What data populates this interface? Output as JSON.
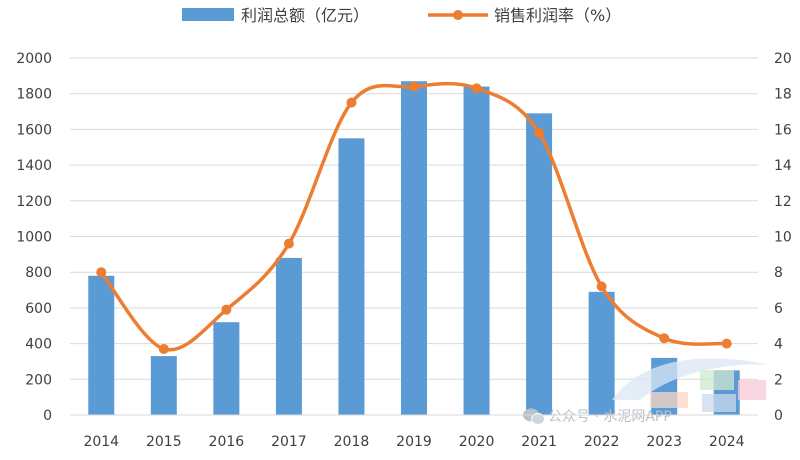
{
  "colors": {
    "bar": "#5b9bd5",
    "line": "#ed7d31",
    "grid": "#d9d9d9",
    "axis_text": "#404040",
    "watermark": "#b9c2cc"
  },
  "watermark": {
    "icon": "wechat-icon",
    "text": "公众号 · 水泥网APP"
  },
  "chart_data": {
    "type": "bar",
    "categories": [
      "2014",
      "2015",
      "2016",
      "2017",
      "2018",
      "2019",
      "2020",
      "2021",
      "2022",
      "2023",
      "2024"
    ],
    "series": [
      {
        "name": "利润总额（亿元）",
        "type": "bar",
        "axis": "left",
        "values": [
          780,
          330,
          520,
          880,
          1550,
          1870,
          1840,
          1690,
          690,
          320,
          250
        ]
      },
      {
        "name": "销售利润率（%）",
        "type": "line",
        "smooth": true,
        "marker": "circle",
        "axis": "right",
        "values": [
          8.0,
          3.7,
          5.9,
          9.6,
          17.5,
          18.4,
          18.3,
          15.8,
          7.2,
          4.3,
          4.0
        ]
      }
    ],
    "y_left": {
      "lim": [
        0,
        2000
      ],
      "ticks": [
        "0",
        "200",
        "400",
        "600",
        "800",
        "1000",
        "1200",
        "1400",
        "1600",
        "1800",
        "2000"
      ]
    },
    "y_right": {
      "lim": [
        0,
        20
      ],
      "ticks": [
        "0",
        "2",
        "4",
        "6",
        "8",
        "10",
        "12",
        "14",
        "16",
        "18",
        "20"
      ]
    },
    "title": "",
    "xlabel": "",
    "ylabel": "",
    "grid": true,
    "legend_position": "top-center"
  }
}
